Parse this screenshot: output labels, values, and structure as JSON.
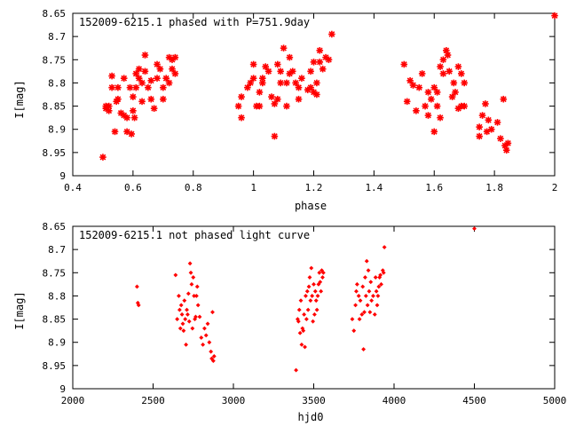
{
  "chart_data": [
    {
      "type": "scatter",
      "title": "152009-6215.1 phased with P=751.9day",
      "xlabel": "phase",
      "ylabel": "I[mag]",
      "xlim": [
        0.4,
        2.0
      ],
      "ylim": [
        8.65,
        9.0
      ],
      "y_inverted": true,
      "grid": false,
      "marker_color": "#ff0000",
      "marker": "bold-asterisk",
      "x_ticks": [
        "0.4",
        "0.6",
        "0.8",
        "1",
        "1.2",
        "1.4",
        "1.6",
        "1.8",
        "2"
      ],
      "x_tick_values": [
        0.4,
        0.6,
        0.8,
        1.0,
        1.2,
        1.4,
        1.6,
        1.8,
        2.0
      ],
      "y_ticks": [
        "8.65",
        "8.7",
        "8.75",
        "8.8",
        "8.85",
        "8.9",
        "8.95",
        "9"
      ],
      "y_tick_values": [
        8.65,
        8.7,
        8.75,
        8.8,
        8.85,
        8.9,
        8.95,
        9.0
      ],
      "points": [
        {
          "x": 0.5,
          "y": 8.96
        },
        {
          "x": 0.51,
          "y": 8.85
        },
        {
          "x": 0.51,
          "y": 8.855
        },
        {
          "x": 0.52,
          "y": 8.85
        },
        {
          "x": 0.52,
          "y": 8.86
        },
        {
          "x": 0.53,
          "y": 8.81
        },
        {
          "x": 0.53,
          "y": 8.785
        },
        {
          "x": 0.54,
          "y": 8.905
        },
        {
          "x": 0.545,
          "y": 8.84
        },
        {
          "x": 0.55,
          "y": 8.81
        },
        {
          "x": 0.55,
          "y": 8.835
        },
        {
          "x": 0.56,
          "y": 8.865
        },
        {
          "x": 0.57,
          "y": 8.87
        },
        {
          "x": 0.57,
          "y": 8.79
        },
        {
          "x": 0.58,
          "y": 8.905
        },
        {
          "x": 0.58,
          "y": 8.875
        },
        {
          "x": 0.59,
          "y": 8.81
        },
        {
          "x": 0.595,
          "y": 8.91
        },
        {
          "x": 0.6,
          "y": 8.86
        },
        {
          "x": 0.6,
          "y": 8.83
        },
        {
          "x": 0.605,
          "y": 8.875
        },
        {
          "x": 0.61,
          "y": 8.81
        },
        {
          "x": 0.61,
          "y": 8.78
        },
        {
          "x": 0.62,
          "y": 8.79
        },
        {
          "x": 0.62,
          "y": 8.77
        },
        {
          "x": 0.63,
          "y": 8.8
        },
        {
          "x": 0.63,
          "y": 8.84
        },
        {
          "x": 0.64,
          "y": 8.775
        },
        {
          "x": 0.64,
          "y": 8.74
        },
        {
          "x": 0.65,
          "y": 8.81
        },
        {
          "x": 0.66,
          "y": 8.835
        },
        {
          "x": 0.66,
          "y": 8.795
        },
        {
          "x": 0.67,
          "y": 8.855
        },
        {
          "x": 0.68,
          "y": 8.76
        },
        {
          "x": 0.68,
          "y": 8.79
        },
        {
          "x": 0.69,
          "y": 8.77
        },
        {
          "x": 0.7,
          "y": 8.81
        },
        {
          "x": 0.7,
          "y": 8.835
        },
        {
          "x": 0.71,
          "y": 8.79
        },
        {
          "x": 0.72,
          "y": 8.8
        },
        {
          "x": 0.72,
          "y": 8.745
        },
        {
          "x": 0.73,
          "y": 8.75
        },
        {
          "x": 0.73,
          "y": 8.77
        },
        {
          "x": 0.74,
          "y": 8.745
        },
        {
          "x": 0.74,
          "y": 8.78
        },
        {
          "x": 0.95,
          "y": 8.85
        },
        {
          "x": 0.96,
          "y": 8.875
        },
        {
          "x": 0.96,
          "y": 8.83
        },
        {
          "x": 0.98,
          "y": 8.81
        },
        {
          "x": 0.99,
          "y": 8.8
        },
        {
          "x": 1.0,
          "y": 8.76
        },
        {
          "x": 1.0,
          "y": 8.79
        },
        {
          "x": 1.01,
          "y": 8.85
        },
        {
          "x": 1.02,
          "y": 8.82
        },
        {
          "x": 1.02,
          "y": 8.85
        },
        {
          "x": 1.03,
          "y": 8.8
        },
        {
          "x": 1.03,
          "y": 8.79
        },
        {
          "x": 1.04,
          "y": 8.765
        },
        {
          "x": 1.05,
          "y": 8.775
        },
        {
          "x": 1.06,
          "y": 8.83
        },
        {
          "x": 1.07,
          "y": 8.845
        },
        {
          "x": 1.07,
          "y": 8.915
        },
        {
          "x": 1.08,
          "y": 8.76
        },
        {
          "x": 1.08,
          "y": 8.835
        },
        {
          "x": 1.09,
          "y": 8.8
        },
        {
          "x": 1.09,
          "y": 8.775
        },
        {
          "x": 1.1,
          "y": 8.725
        },
        {
          "x": 1.11,
          "y": 8.8
        },
        {
          "x": 1.11,
          "y": 8.85
        },
        {
          "x": 1.12,
          "y": 8.78
        },
        {
          "x": 1.12,
          "y": 8.745
        },
        {
          "x": 1.13,
          "y": 8.775
        },
        {
          "x": 1.14,
          "y": 8.8
        },
        {
          "x": 1.15,
          "y": 8.835
        },
        {
          "x": 1.15,
          "y": 8.81
        },
        {
          "x": 1.16,
          "y": 8.79
        },
        {
          "x": 1.18,
          "y": 8.815
        },
        {
          "x": 1.19,
          "y": 8.775
        },
        {
          "x": 1.19,
          "y": 8.81
        },
        {
          "x": 1.2,
          "y": 8.755
        },
        {
          "x": 1.2,
          "y": 8.82
        },
        {
          "x": 1.21,
          "y": 8.825
        },
        {
          "x": 1.21,
          "y": 8.8
        },
        {
          "x": 1.22,
          "y": 8.755
        },
        {
          "x": 1.22,
          "y": 8.73
        },
        {
          "x": 1.23,
          "y": 8.77
        },
        {
          "x": 1.24,
          "y": 8.745
        },
        {
          "x": 1.25,
          "y": 8.75
        },
        {
          "x": 1.26,
          "y": 8.695
        },
        {
          "x": 1.5,
          "y": 8.76
        },
        {
          "x": 1.51,
          "y": 8.84
        },
        {
          "x": 1.52,
          "y": 8.795
        },
        {
          "x": 1.53,
          "y": 8.805
        },
        {
          "x": 1.54,
          "y": 8.86
        },
        {
          "x": 1.55,
          "y": 8.81
        },
        {
          "x": 1.56,
          "y": 8.78
        },
        {
          "x": 1.57,
          "y": 8.85
        },
        {
          "x": 1.58,
          "y": 8.87
        },
        {
          "x": 1.58,
          "y": 8.82
        },
        {
          "x": 1.59,
          "y": 8.835
        },
        {
          "x": 1.6,
          "y": 8.81
        },
        {
          "x": 1.6,
          "y": 8.905
        },
        {
          "x": 1.61,
          "y": 8.85
        },
        {
          "x": 1.61,
          "y": 8.82
        },
        {
          "x": 1.62,
          "y": 8.875
        },
        {
          "x": 1.62,
          "y": 8.765
        },
        {
          "x": 1.63,
          "y": 8.78
        },
        {
          "x": 1.63,
          "y": 8.75
        },
        {
          "x": 1.64,
          "y": 8.73
        },
        {
          "x": 1.645,
          "y": 8.74
        },
        {
          "x": 1.65,
          "y": 8.775
        },
        {
          "x": 1.66,
          "y": 8.83
        },
        {
          "x": 1.665,
          "y": 8.8
        },
        {
          "x": 1.67,
          "y": 8.82
        },
        {
          "x": 1.68,
          "y": 8.765
        },
        {
          "x": 1.68,
          "y": 8.855
        },
        {
          "x": 1.69,
          "y": 8.85
        },
        {
          "x": 1.69,
          "y": 8.78
        },
        {
          "x": 1.7,
          "y": 8.8
        },
        {
          "x": 1.7,
          "y": 8.85
        },
        {
          "x": 1.75,
          "y": 8.915
        },
        {
          "x": 1.75,
          "y": 8.895
        },
        {
          "x": 1.76,
          "y": 8.87
        },
        {
          "x": 1.77,
          "y": 8.845
        },
        {
          "x": 1.775,
          "y": 8.905
        },
        {
          "x": 1.78,
          "y": 8.88
        },
        {
          "x": 1.79,
          "y": 8.9
        },
        {
          "x": 1.81,
          "y": 8.885
        },
        {
          "x": 1.82,
          "y": 8.92
        },
        {
          "x": 1.83,
          "y": 8.835
        },
        {
          "x": 1.835,
          "y": 8.935
        },
        {
          "x": 1.84,
          "y": 8.945
        },
        {
          "x": 1.845,
          "y": 8.93
        },
        {
          "x": 2.0,
          "y": 8.655
        }
      ]
    },
    {
      "type": "scatter",
      "title": "152009-6215.1 not phased light curve",
      "xlabel": "hjd0",
      "ylabel": "I[mag]",
      "xlim": [
        2000,
        5000
      ],
      "ylim": [
        8.65,
        9.0
      ],
      "y_inverted": true,
      "grid": false,
      "marker_color": "#ff0000",
      "marker": "small-diamond",
      "x_ticks": [
        "2000",
        "2500",
        "3000",
        "3500",
        "4000",
        "4500",
        "5000"
      ],
      "x_tick_values": [
        2000,
        2500,
        3000,
        3500,
        4000,
        4500,
        5000
      ],
      "y_ticks": [
        "8.65",
        "8.7",
        "8.75",
        "8.8",
        "8.85",
        "8.9",
        "8.95",
        "9"
      ],
      "y_tick_values": [
        8.65,
        8.7,
        8.75,
        8.8,
        8.85,
        8.9,
        8.95,
        9.0
      ],
      "points": [
        {
          "x": 2400,
          "y": 8.78
        },
        {
          "x": 2405,
          "y": 8.815
        },
        {
          "x": 2410,
          "y": 8.82
        },
        {
          "x": 2640,
          "y": 8.755
        },
        {
          "x": 2650,
          "y": 8.85
        },
        {
          "x": 2660,
          "y": 8.8
        },
        {
          "x": 2665,
          "y": 8.83
        },
        {
          "x": 2670,
          "y": 8.87
        },
        {
          "x": 2675,
          "y": 8.82
        },
        {
          "x": 2680,
          "y": 8.84
        },
        {
          "x": 2685,
          "y": 8.86
        },
        {
          "x": 2690,
          "y": 8.875
        },
        {
          "x": 2695,
          "y": 8.81
        },
        {
          "x": 2700,
          "y": 8.85
        },
        {
          "x": 2705,
          "y": 8.905
        },
        {
          "x": 2710,
          "y": 8.83
        },
        {
          "x": 2715,
          "y": 8.84
        },
        {
          "x": 2720,
          "y": 8.795
        },
        {
          "x": 2725,
          "y": 8.855
        },
        {
          "x": 2730,
          "y": 8.73
        },
        {
          "x": 2735,
          "y": 8.75
        },
        {
          "x": 2740,
          "y": 8.775
        },
        {
          "x": 2745,
          "y": 8.87
        },
        {
          "x": 2750,
          "y": 8.76
        },
        {
          "x": 2755,
          "y": 8.8
        },
        {
          "x": 2760,
          "y": 8.85
        },
        {
          "x": 2765,
          "y": 8.845
        },
        {
          "x": 2770,
          "y": 8.8
        },
        {
          "x": 2775,
          "y": 8.78
        },
        {
          "x": 2780,
          "y": 8.82
        },
        {
          "x": 2790,
          "y": 8.845
        },
        {
          "x": 2800,
          "y": 8.89
        },
        {
          "x": 2810,
          "y": 8.905
        },
        {
          "x": 2820,
          "y": 8.87
        },
        {
          "x": 2830,
          "y": 8.885
        },
        {
          "x": 2840,
          "y": 8.86
        },
        {
          "x": 2850,
          "y": 8.9
        },
        {
          "x": 2860,
          "y": 8.92
        },
        {
          "x": 2865,
          "y": 8.935
        },
        {
          "x": 2870,
          "y": 8.835
        },
        {
          "x": 2875,
          "y": 8.94
        },
        {
          "x": 2880,
          "y": 8.93
        },
        {
          "x": 3390,
          "y": 8.96
        },
        {
          "x": 3400,
          "y": 8.85
        },
        {
          "x": 3405,
          "y": 8.855
        },
        {
          "x": 3410,
          "y": 8.83
        },
        {
          "x": 3415,
          "y": 8.88
        },
        {
          "x": 3420,
          "y": 8.81
        },
        {
          "x": 3425,
          "y": 8.905
        },
        {
          "x": 3430,
          "y": 8.87
        },
        {
          "x": 3435,
          "y": 8.875
        },
        {
          "x": 3440,
          "y": 8.84
        },
        {
          "x": 3445,
          "y": 8.91
        },
        {
          "x": 3450,
          "y": 8.8
        },
        {
          "x": 3455,
          "y": 8.85
        },
        {
          "x": 3460,
          "y": 8.79
        },
        {
          "x": 3465,
          "y": 8.83
        },
        {
          "x": 3470,
          "y": 8.78
        },
        {
          "x": 3475,
          "y": 8.76
        },
        {
          "x": 3480,
          "y": 8.81
        },
        {
          "x": 3485,
          "y": 8.74
        },
        {
          "x": 3490,
          "y": 8.8
        },
        {
          "x": 3495,
          "y": 8.855
        },
        {
          "x": 3500,
          "y": 8.775
        },
        {
          "x": 3505,
          "y": 8.84
        },
        {
          "x": 3510,
          "y": 8.79
        },
        {
          "x": 3515,
          "y": 8.81
        },
        {
          "x": 3520,
          "y": 8.83
        },
        {
          "x": 3525,
          "y": 8.8
        },
        {
          "x": 3530,
          "y": 8.775
        },
        {
          "x": 3535,
          "y": 8.75
        },
        {
          "x": 3540,
          "y": 8.77
        },
        {
          "x": 3545,
          "y": 8.79
        },
        {
          "x": 3550,
          "y": 8.745
        },
        {
          "x": 3555,
          "y": 8.76
        },
        {
          "x": 3560,
          "y": 8.75
        },
        {
          "x": 3740,
          "y": 8.85
        },
        {
          "x": 3750,
          "y": 8.875
        },
        {
          "x": 3760,
          "y": 8.82
        },
        {
          "x": 3765,
          "y": 8.79
        },
        {
          "x": 3770,
          "y": 8.775
        },
        {
          "x": 3780,
          "y": 8.8
        },
        {
          "x": 3785,
          "y": 8.85
        },
        {
          "x": 3790,
          "y": 8.81
        },
        {
          "x": 3800,
          "y": 8.84
        },
        {
          "x": 3805,
          "y": 8.78
        },
        {
          "x": 3810,
          "y": 8.915
        },
        {
          "x": 3815,
          "y": 8.835
        },
        {
          "x": 3820,
          "y": 8.76
        },
        {
          "x": 3825,
          "y": 8.8
        },
        {
          "x": 3830,
          "y": 8.725
        },
        {
          "x": 3835,
          "y": 8.82
        },
        {
          "x": 3840,
          "y": 8.745
        },
        {
          "x": 3845,
          "y": 8.79
        },
        {
          "x": 3850,
          "y": 8.835
        },
        {
          "x": 3855,
          "y": 8.77
        },
        {
          "x": 3860,
          "y": 8.81
        },
        {
          "x": 3870,
          "y": 8.8
        },
        {
          "x": 3880,
          "y": 8.84
        },
        {
          "x": 3885,
          "y": 8.76
        },
        {
          "x": 3890,
          "y": 8.79
        },
        {
          "x": 3895,
          "y": 8.82
        },
        {
          "x": 3900,
          "y": 8.8
        },
        {
          "x": 3905,
          "y": 8.78
        },
        {
          "x": 3910,
          "y": 8.76
        },
        {
          "x": 3915,
          "y": 8.755
        },
        {
          "x": 3920,
          "y": 8.775
        },
        {
          "x": 3930,
          "y": 8.745
        },
        {
          "x": 3935,
          "y": 8.75
        },
        {
          "x": 3940,
          "y": 8.695
        },
        {
          "x": 4500,
          "y": 8.655
        }
      ]
    }
  ]
}
